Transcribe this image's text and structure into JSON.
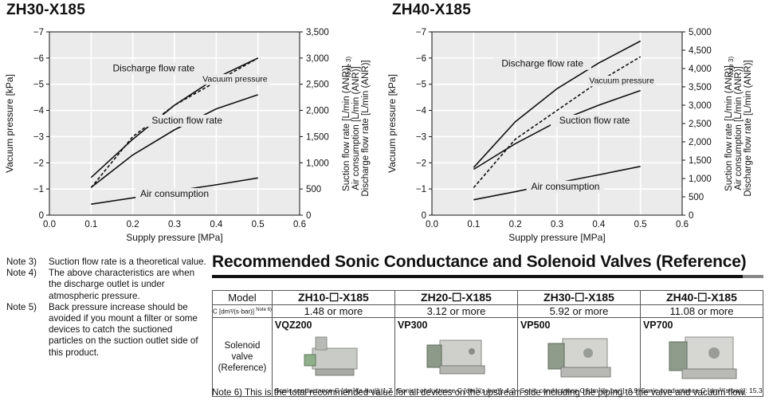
{
  "chart_data": [
    {
      "type": "line",
      "title": "ZH30-X185",
      "xlabel": "Supply pressure [MPa]",
      "ylabel": "Vacuum pressure [kPa]",
      "ylabel_right": [
        "Suction flow rate [L/min (ANR)]",
        "Air consumption [L/min (ANR)]",
        "Discharge flow rate [L/min (ANR)]"
      ],
      "right_note": "Note 3)",
      "xlim": [
        0.0,
        0.6
      ],
      "ylim": [
        0,
        -7
      ],
      "ylim_right": [
        0,
        3500
      ],
      "x_ticks": [
        "0.0",
        "0.1",
        "0.2",
        "0.3",
        "0.4",
        "0.5",
        "0.6"
      ],
      "y_ticks": [
        "0",
        "−1",
        "−2",
        "−3",
        "−4",
        "−5",
        "−6",
        "−7"
      ],
      "y_right_ticks": [
        "0",
        "500",
        "1,000",
        "1,500",
        "2,000",
        "2,500",
        "3,000",
        "3,500"
      ],
      "grid": true,
      "series": [
        {
          "name": "Discharge flow rate",
          "axis": "right",
          "style": "solid",
          "x": [
            0.1,
            0.2,
            0.3,
            0.4,
            0.5
          ],
          "values": [
            720,
            1450,
            2100,
            2620,
            3000
          ]
        },
        {
          "name": "Vacuum pressure",
          "axis": "left",
          "style": "dashed",
          "x": [
            0.1,
            0.2,
            0.3,
            0.4,
            0.5
          ],
          "values": [
            -1.05,
            -3.0,
            -4.2,
            -5.1,
            -6.0
          ]
        },
        {
          "name": "Suction flow rate",
          "axis": "right",
          "style": "solid",
          "x": [
            0.1,
            0.2,
            0.3,
            0.4,
            0.5
          ],
          "values": [
            530,
            1150,
            1630,
            2030,
            2300
          ]
        },
        {
          "name": "Air consumption",
          "axis": "right",
          "style": "solid",
          "x": [
            0.1,
            0.2,
            0.3,
            0.4,
            0.5
          ],
          "values": [
            210,
            330,
            460,
            580,
            710
          ]
        }
      ],
      "annotations": [
        {
          "text": "Discharge flow rate",
          "x": 0.25,
          "y_right": 2750
        },
        {
          "text": "Vacuum pressure",
          "x": 0.445,
          "y_right": 2550
        },
        {
          "text": "Suction flow rate",
          "x": 0.33,
          "y_right": 1750
        },
        {
          "text": "Air consumption",
          "x": 0.3,
          "y_right": 350
        }
      ]
    },
    {
      "type": "line",
      "title": "ZH40-X185",
      "xlabel": "Supply pressure [MPa]",
      "ylabel": "Vacuum pressure [kPa]",
      "ylabel_right": [
        "Suction flow rate [L/min (ANR)]",
        "Air consumption [L/min (ANR)]",
        "Discharge flow rate [L/min (ANR)]"
      ],
      "right_note": "Note 3)",
      "xlim": [
        0.0,
        0.6
      ],
      "ylim": [
        0,
        -7
      ],
      "ylim_right": [
        0,
        5000
      ],
      "x_ticks": [
        "0.0",
        "0.1",
        "0.2",
        "0.3",
        "0.4",
        "0.5",
        "0.6"
      ],
      "y_ticks": [
        "0",
        "−1",
        "−2",
        "−3",
        "−4",
        "−5",
        "−6",
        "−7"
      ],
      "y_right_ticks": [
        "0",
        "500",
        "1,000",
        "1,500",
        "2,000",
        "2,500",
        "3,000",
        "3,500",
        "4,000",
        "4,500",
        "5,000"
      ],
      "grid": true,
      "series": [
        {
          "name": "Discharge flow rate",
          "axis": "right",
          "style": "solid",
          "x": [
            0.1,
            0.2,
            0.3,
            0.4,
            0.5
          ],
          "values": [
            1300,
            2550,
            3450,
            4150,
            4750
          ]
        },
        {
          "name": "Vacuum pressure",
          "axis": "left",
          "style": "dashed",
          "x": [
            0.1,
            0.2,
            0.3,
            0.4,
            0.5
          ],
          "values": [
            -1.05,
            -2.9,
            -4.0,
            -5.1,
            -6.05
          ]
        },
        {
          "name": "Suction flow rate",
          "axis": "right",
          "style": "solid",
          "x": [
            0.1,
            0.2,
            0.3,
            0.4,
            0.5
          ],
          "values": [
            1250,
            1950,
            2550,
            3000,
            3400
          ]
        },
        {
          "name": "Air consumption",
          "axis": "right",
          "style": "solid",
          "x": [
            0.1,
            0.2,
            0.3,
            0.4,
            0.5
          ],
          "values": [
            420,
            640,
            880,
            1100,
            1330
          ]
        }
      ],
      "annotations": [
        {
          "text": "Discharge flow rate",
          "x": 0.265,
          "y_right": 4050
        },
        {
          "text": "Vacuum pressure",
          "x": 0.455,
          "y_right": 3600
        },
        {
          "text": "Suction flow rate",
          "x": 0.39,
          "y_right": 2500
        },
        {
          "text": "Air consumption",
          "x": 0.32,
          "y_right": 700
        }
      ]
    }
  ],
  "notes": [
    {
      "tag": "Note 3)",
      "text": "Suction flow rate is a theoretical value."
    },
    {
      "tag": "Note 4)",
      "text": "The above characteristics are when the discharge outlet is under atmospheric pressure."
    },
    {
      "tag": "Note 5)",
      "text": "Back pressure increase should be avoided if you mount a filter or some devices to catch the suctioned particles on the suction outlet side of this product."
    }
  ],
  "section_title": "Recommended Sonic Conductance and Solenoid Valves (Reference)",
  "table": {
    "model_header": "Model",
    "c_header": "C [dm³/(s·bar)]",
    "c_header_note": "Note 6)",
    "valve_header": "Solenoid valve (Reference)",
    "columns": [
      {
        "model": "ZH10-☐-X185",
        "c": "1.48 or more",
        "valve": "VQZ200",
        "caption": "Sonic conductance C [dm³/(s·bar)]: 1.7"
      },
      {
        "model": "ZH20-☐-X185",
        "c": "3.12 or more",
        "valve": "VP300",
        "caption": "Sonic conductance C [dm³/(s·bar)]: 4.2"
      },
      {
        "model": "ZH30-☐-X185",
        "c": "5.92 or more",
        "valve": "VP500",
        "caption": "Sonic conductance C [dm³/(s·bar)]: 8.9"
      },
      {
        "model": "ZH40-☐-X185",
        "c": "11.08 or more",
        "valve": "VP700",
        "caption": "Sonic conductance C [dm³/(s·bar)]: 15.3"
      }
    ]
  },
  "footnote": "Note 6) This is the total recommended value for all devices on the upstream side including the piping to the valve and vacuum flow.",
  "colors": {
    "plot_bg": "#ebebeb",
    "grid": "#ffffff",
    "line": "#111111"
  }
}
